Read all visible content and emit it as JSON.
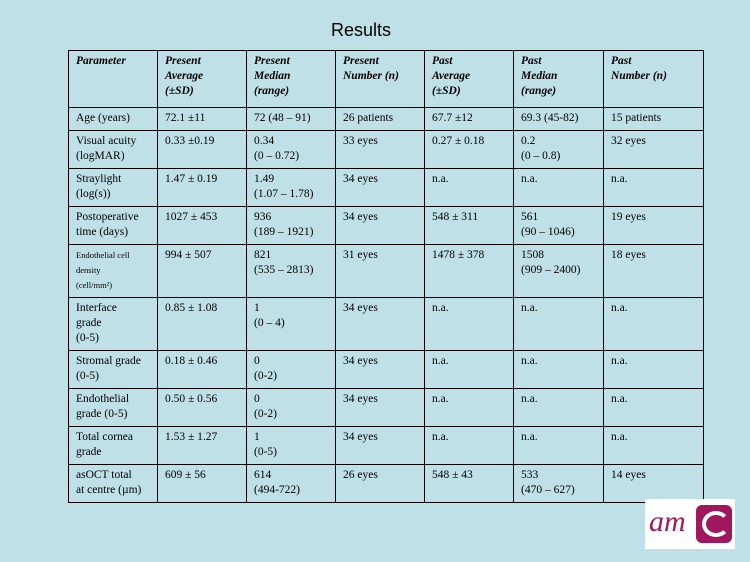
{
  "title": "Results",
  "table": {
    "headers": [
      "Parameter",
      "Present\nAverage\n(±SD)",
      "Present\nMedian\n(range)",
      "Present\nNumber (n)",
      "Past\nAverage\n(±SD)",
      "Past\nMedian\n(range)",
      "Past\nNumber (n)"
    ],
    "rows": [
      [
        "Age (years)",
        "72.1 ±11",
        "72 (48 – 91)",
        "26 patients",
        "67.7 ±12",
        "69.3 (45-82)",
        "15 patients"
      ],
      [
        "Visual acuity\n(logMAR)",
        "0.33 ±0.19",
        "0.34\n(0 – 0.72)",
        "33 eyes",
        "0.27 ± 0.18",
        "0.2\n(0 – 0.8)",
        "32 eyes"
      ],
      [
        "Straylight\n(log(s))",
        "1.47 ± 0.19",
        "1.49\n(1.07 – 1.78)",
        "34 eyes",
        "n.a.",
        "n.a.",
        "n.a."
      ],
      [
        "Postoperative\ntime (days)",
        "1027 ± 453",
        "936\n(189 – 1921)",
        "34 eyes",
        "548 ± 311",
        "561\n(90 – 1046)",
        "19 eyes"
      ],
      [
        "Endothelial cell\ndensity\n(cell/mm²)",
        "994 ± 507",
        "821\n(535 – 2813)",
        "31 eyes",
        "1478 ± 378",
        "1508\n(909 – 2400)",
        "18 eyes"
      ],
      [
        "Interface\ngrade\n(0-5)",
        "0.85 ± 1.08",
        "1\n(0 – 4)",
        "34 eyes",
        "n.a.",
        "n.a.",
        "n.a."
      ],
      [
        "Stromal grade\n(0-5)",
        "0.18 ± 0.46",
        "0\n(0-2)",
        "34 eyes",
        "n.a.",
        "n.a.",
        "n.a."
      ],
      [
        "Endothelial\ngrade (0-5)",
        "0.50 ± 0.56",
        "0\n(0-2)",
        "34 eyes",
        "n.a.",
        "n.a.",
        "n.a."
      ],
      [
        "Total cornea\ngrade",
        "1.53 ± 1.27",
        "1\n(0-5)",
        "34 eyes",
        "n.a.",
        "n.a.",
        "n.a."
      ],
      [
        "asOCT total\nat centre (µm)",
        "609 ± 56",
        "614\n(494-722)",
        "26 eyes",
        "548 ± 43",
        "533\n(470 – 627)",
        "14 eyes"
      ]
    ]
  },
  "logo": {
    "text": "am",
    "color": "#a0175e"
  }
}
